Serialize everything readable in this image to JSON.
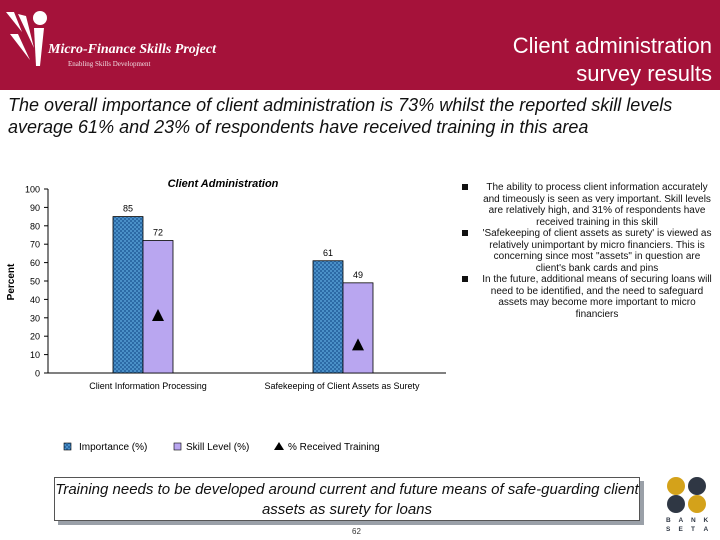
{
  "header": {
    "logo_text": "Micro-Finance Skills Project",
    "logo_tagline": "Enabling Skills Development",
    "title_line1": "Client administration",
    "title_line2": "survey results"
  },
  "subtitle": "The overall importance of client administration is 73% whilst the reported skill levels average 61% and 23% of respondents have received training in this area",
  "chart_data": {
    "type": "bar",
    "title": "Client Administration",
    "ylabel": "Percent",
    "ylim": [
      0,
      100
    ],
    "yticks": [
      "0",
      "10",
      "20",
      "30",
      "40",
      "50",
      "60",
      "70",
      "80",
      "90",
      "100"
    ],
    "categories": [
      "Client Information Processing",
      "Safekeeping of Client Assets as Surety"
    ],
    "series": [
      {
        "name": "Importance (%)",
        "values": [
          85,
          61
        ],
        "labels": [
          "85",
          "61"
        ],
        "color": "#4a90c8",
        "pattern": "checker"
      },
      {
        "name": "Skill Level (%)",
        "values": [
          72,
          49
        ],
        "labels": [
          "72",
          "49"
        ],
        "color": "#b9a6f0"
      },
      {
        "name": "% Received Training",
        "values": [
          31,
          15
        ],
        "marker": "triangle",
        "color": "#000000"
      }
    ],
    "legend": {
      "placement": "bottom",
      "items": [
        "Importance (%)",
        "Skill Level (%)",
        "% Received Training"
      ]
    },
    "grid": false
  },
  "bullets": [
    "The ability to process client information accurately and timeously is seen as very important. Skill levels are relatively high, and 31% of respondents have received training in this skill",
    "'Safekeeping of client assets as surety' is viewed as relatively unimportant by micro financiers. This is concerning since most \"assets\" in question are client's bank cards and pins",
    "In the future, additional means of securing loans will need to be identified, and the need to safeguard assets may become more important to micro financiers"
  ],
  "banner_text": "Training needs to be developed around current and future means of safe-guarding client assets as surety for loans",
  "page_number": "62",
  "bank_logo_letters": [
    "B",
    "A",
    "N",
    "K",
    "S",
    "E",
    "T",
    "A"
  ],
  "colors": {
    "header": "#a5123a",
    "importance": "#4a90c8",
    "skill": "#b9a6f0"
  }
}
